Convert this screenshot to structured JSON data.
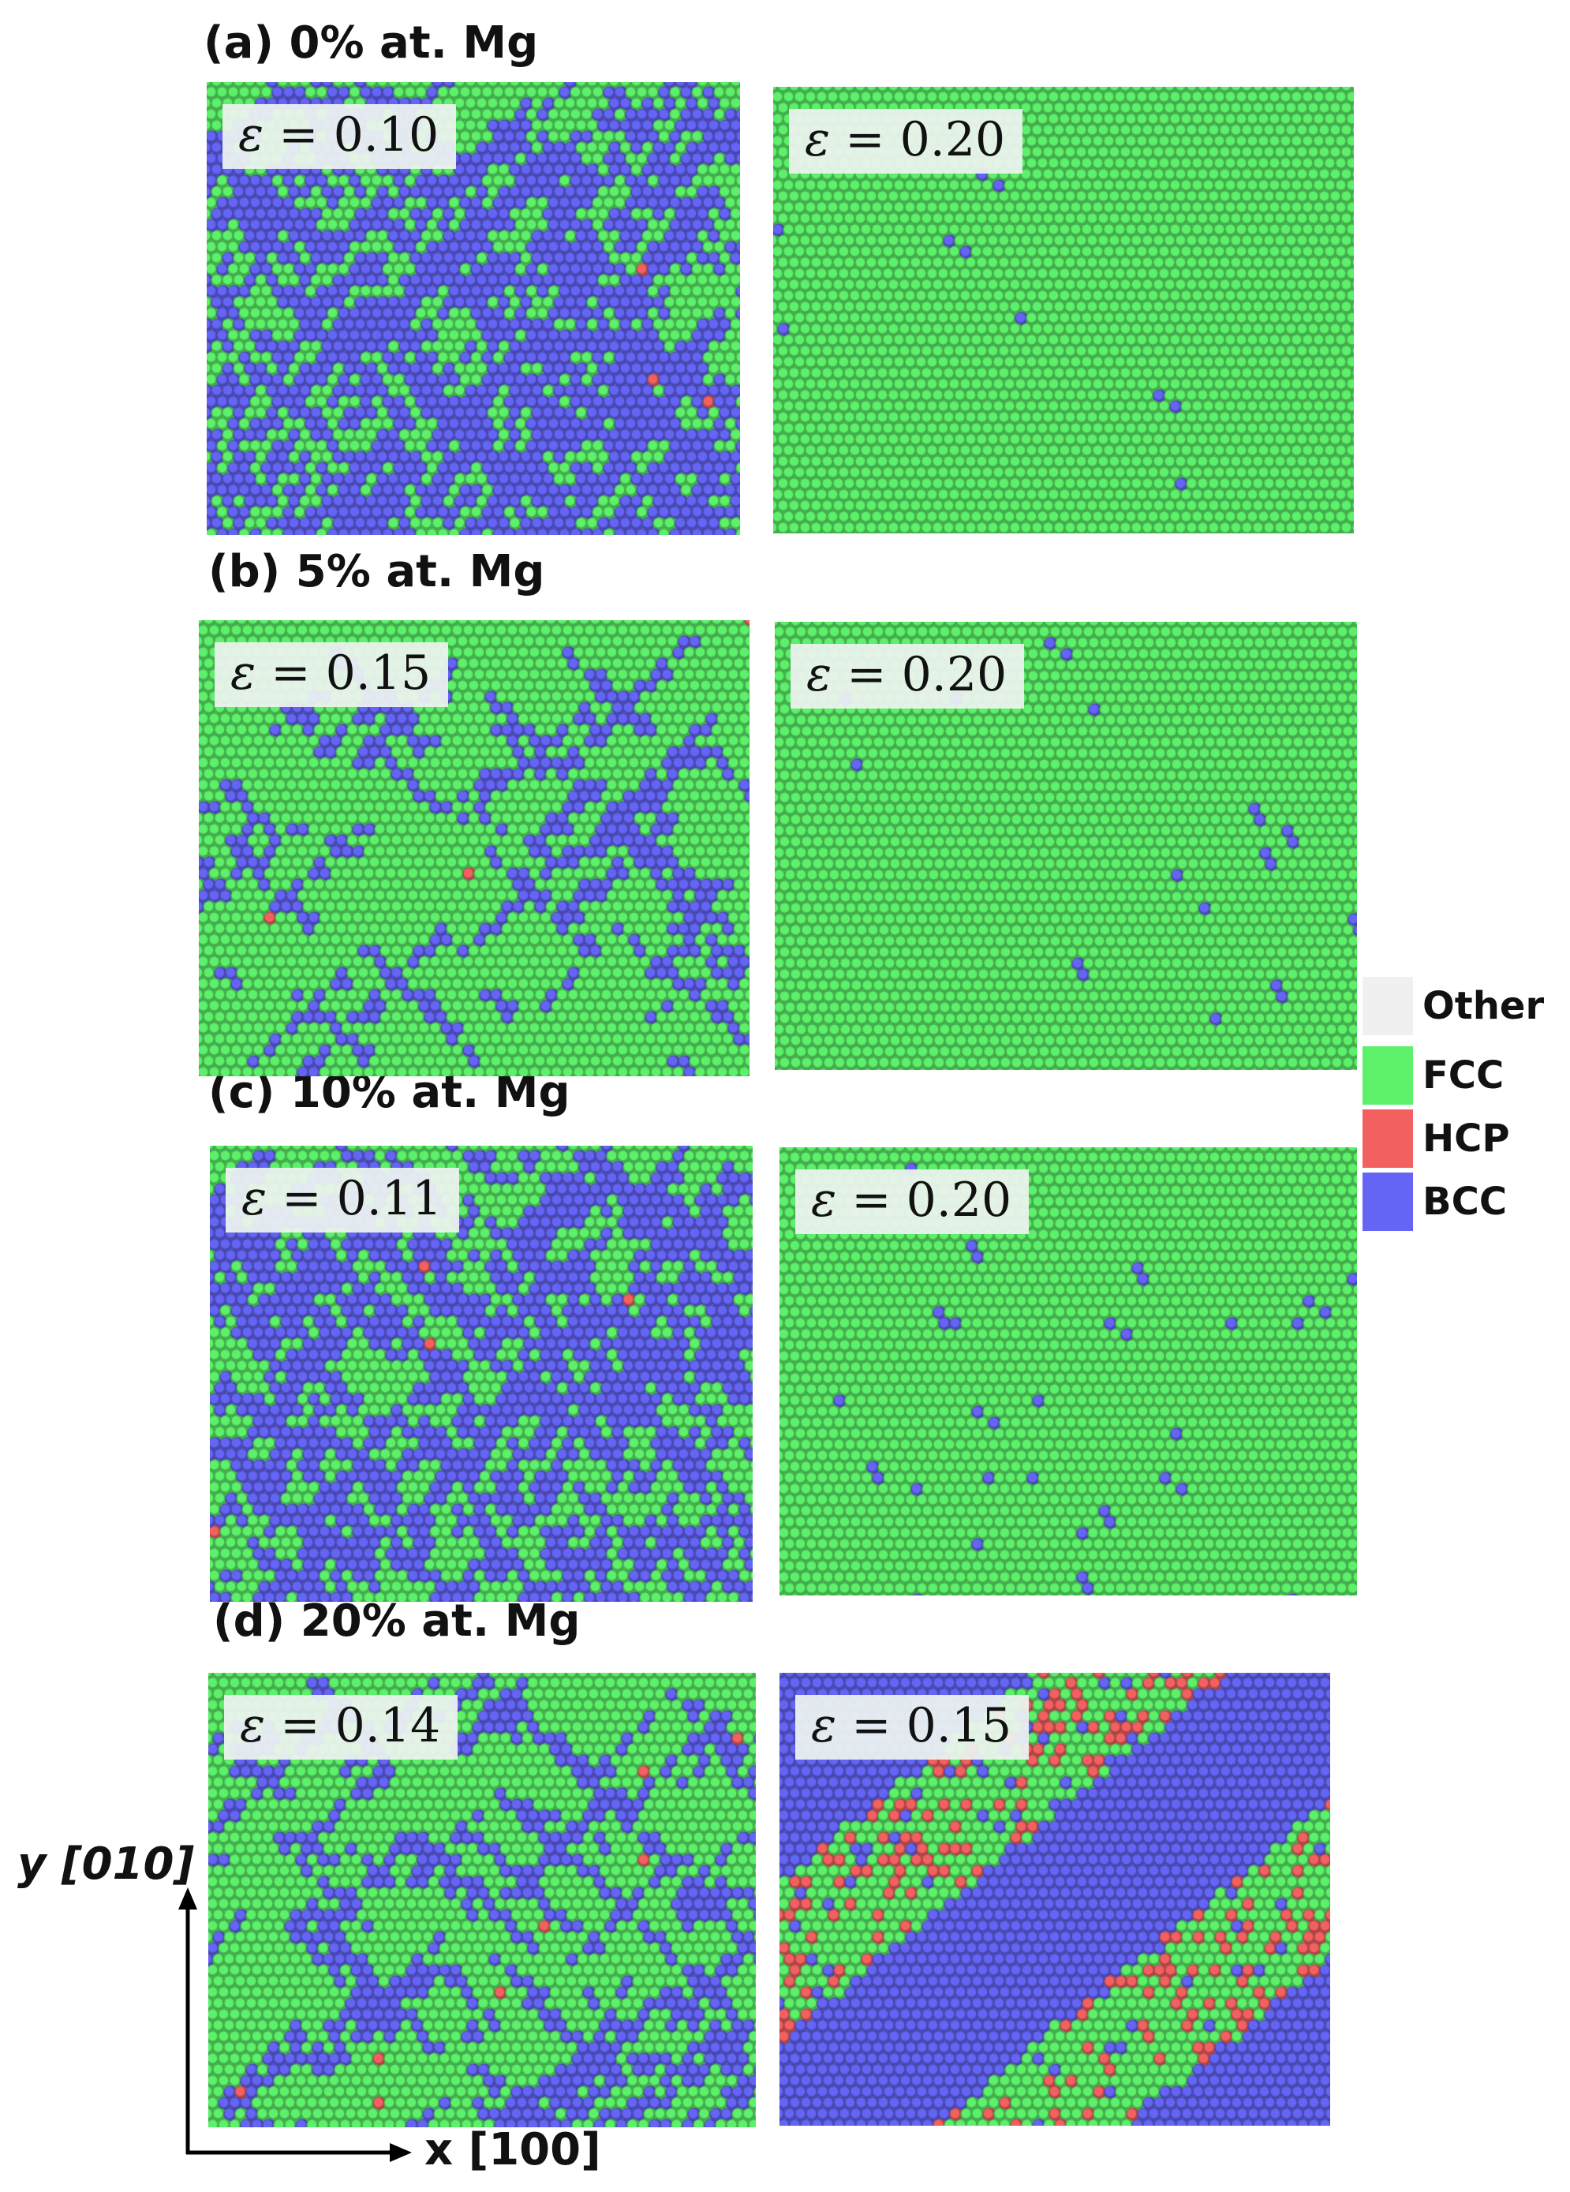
{
  "panels": [
    {
      "id": "a",
      "title": "(a) 0% at. Mg",
      "left_strain": {
        "symbol": "ε",
        "value": "0.10",
        "bcc_fraction": 0.62,
        "hcp_fraction": 0.001
      },
      "right_strain": {
        "symbol": "ε",
        "value": "0.20",
        "bcc_fraction": 0.003,
        "hcp_fraction": 0.0
      }
    },
    {
      "id": "b",
      "title": "(b) 5% at. Mg",
      "left_strain": {
        "symbol": "ε",
        "value": "0.15",
        "bcc_fraction": 0.2,
        "hcp_fraction": 0.001
      },
      "right_strain": {
        "symbol": "ε",
        "value": "0.20",
        "bcc_fraction": 0.006,
        "hcp_fraction": 0.0
      }
    },
    {
      "id": "c",
      "title": "(c) 10% at. Mg",
      "left_strain": {
        "symbol": "ε",
        "value": "0.11",
        "bcc_fraction": 0.58,
        "hcp_fraction": 0.002
      },
      "right_strain": {
        "symbol": "ε",
        "value": "0.20",
        "bcc_fraction": 0.012,
        "hcp_fraction": 0.0
      }
    },
    {
      "id": "d",
      "title": "(d) 20% at. Mg",
      "left_strain": {
        "symbol": "ε",
        "value": "0.14",
        "bcc_fraction": 0.3,
        "hcp_fraction": 0.003
      },
      "right_strain": {
        "symbol": "ε",
        "value": "0.15",
        "bcc_fraction": 0.6,
        "hcp_fraction": 0.04
      }
    }
  ],
  "legend": [
    {
      "label": "Other",
      "color": "#f0f0f0"
    },
    {
      "label": "FCC",
      "color": "#5df06a"
    },
    {
      "label": "HCP",
      "color": "#f26060"
    },
    {
      "label": "BCC",
      "color": "#6464f5"
    }
  ],
  "axes": {
    "y_label": "y [010]",
    "x_label": "x [100]"
  }
}
